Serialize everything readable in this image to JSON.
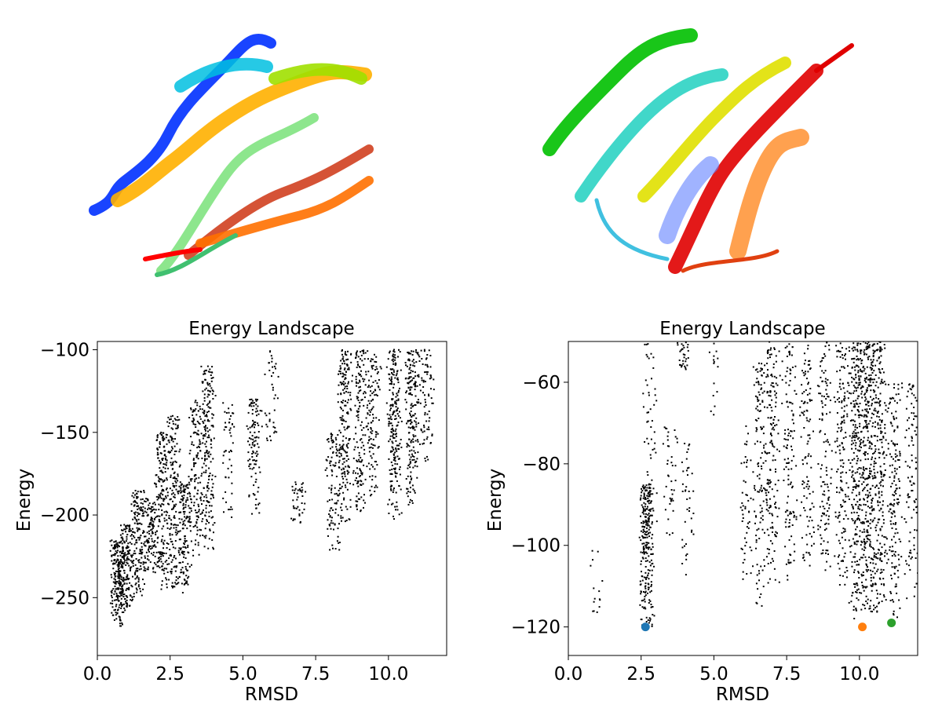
{
  "proteins": [
    {
      "rendering": "ribbon",
      "coloring": "rainbow"
    },
    {
      "rendering": "ribbon",
      "coloring": "rainbow"
    }
  ],
  "chart_data": [
    {
      "type": "scatter",
      "title": "Energy Landscape",
      "xlabel": "RMSD",
      "ylabel": "Energy",
      "xlim": [
        0,
        12
      ],
      "ylim": [
        -285,
        -95
      ],
      "xticks": [
        "0.0",
        "2.5",
        "5.0",
        "7.5",
        "10.0"
      ],
      "xtick_values": [
        0,
        2.5,
        5,
        7.5,
        10
      ],
      "yticks": [
        "−250",
        "−200",
        "−150",
        "−100"
      ],
      "ytick_values": [
        -250,
        -200,
        -150,
        -100
      ],
      "grid": false,
      "point_color": "#000000",
      "clusters": [
        {
          "x": 0.7,
          "y_low": -268,
          "y_high": -215,
          "n": 220
        },
        {
          "x": 1.0,
          "y_low": -258,
          "y_high": -205,
          "n": 160
        },
        {
          "x": 1.4,
          "y_low": -250,
          "y_high": -185,
          "n": 150
        },
        {
          "x": 1.8,
          "y_low": -235,
          "y_high": -190,
          "n": 120
        },
        {
          "x": 2.2,
          "y_low": -245,
          "y_high": -150,
          "n": 200
        },
        {
          "x": 2.6,
          "y_low": -245,
          "y_high": -140,
          "n": 180
        },
        {
          "x": 3.0,
          "y_low": -248,
          "y_high": -180,
          "n": 150
        },
        {
          "x": 3.4,
          "y_low": -225,
          "y_high": -130,
          "n": 140
        },
        {
          "x": 3.8,
          "y_low": -222,
          "y_high": -110,
          "n": 200
        },
        {
          "x": 4.5,
          "y_low": -205,
          "y_high": -130,
          "n": 50
        },
        {
          "x": 5.4,
          "y_low": -200,
          "y_high": -130,
          "n": 110
        },
        {
          "x": 6.9,
          "y_low": -205,
          "y_high": -180,
          "n": 40
        },
        {
          "x": 8.1,
          "y_low": -222,
          "y_high": -150,
          "n": 100
        },
        {
          "x": 8.5,
          "y_low": -205,
          "y_high": -100,
          "n": 200
        },
        {
          "x": 9.0,
          "y_low": -200,
          "y_high": -100,
          "n": 150
        },
        {
          "x": 9.5,
          "y_low": -190,
          "y_high": -100,
          "n": 120
        },
        {
          "x": 10.2,
          "y_low": -205,
          "y_high": -100,
          "n": 220
        },
        {
          "x": 10.8,
          "y_low": -195,
          "y_high": -100,
          "n": 200
        },
        {
          "x": 11.3,
          "y_low": -170,
          "y_high": -100,
          "n": 80
        },
        {
          "x": 6.0,
          "y_low": -160,
          "y_high": -100,
          "n": 40
        }
      ],
      "highlights": []
    },
    {
      "type": "scatter",
      "title": "Energy Landscape",
      "xlabel": "RMSD",
      "ylabel": "Energy",
      "xlim": [
        0,
        12
      ],
      "ylim": [
        -127,
        -50
      ],
      "xticks": [
        "0.0",
        "2.5",
        "5.0",
        "7.5",
        "10.0"
      ],
      "xtick_values": [
        0,
        2.5,
        5,
        7.5,
        10
      ],
      "yticks": [
        "−120",
        "−100",
        "−80",
        "−60"
      ],
      "ytick_values": [
        -120,
        -100,
        -80,
        -60
      ],
      "grid": false,
      "point_color": "#000000",
      "clusters": [
        {
          "x": 0.95,
          "y_low": -117,
          "y_high": -100,
          "n": 15
        },
        {
          "x": 2.7,
          "y_low": -120,
          "y_high": -85,
          "n": 250
        },
        {
          "x": 2.8,
          "y_low": -110,
          "y_high": -50,
          "n": 60
        },
        {
          "x": 3.5,
          "y_low": -100,
          "y_high": -70,
          "n": 40
        },
        {
          "x": 3.95,
          "y_low": -57,
          "y_high": -50,
          "n": 30
        },
        {
          "x": 4.1,
          "y_low": -110,
          "y_high": -75,
          "n": 40
        },
        {
          "x": 5.0,
          "y_low": -73,
          "y_high": -50,
          "n": 15
        },
        {
          "x": 6.1,
          "y_low": -110,
          "y_high": -70,
          "n": 50
        },
        {
          "x": 6.6,
          "y_low": -115,
          "y_high": -55,
          "n": 130
        },
        {
          "x": 7.0,
          "y_low": -110,
          "y_high": -50,
          "n": 160
        },
        {
          "x": 7.6,
          "y_low": -110,
          "y_high": -50,
          "n": 120
        },
        {
          "x": 8.2,
          "y_low": -105,
          "y_high": -50,
          "n": 110
        },
        {
          "x": 8.8,
          "y_low": -108,
          "y_high": -50,
          "n": 120
        },
        {
          "x": 9.4,
          "y_low": -110,
          "y_high": -50,
          "n": 160
        },
        {
          "x": 9.9,
          "y_low": -118,
          "y_high": -50,
          "n": 300
        },
        {
          "x": 10.3,
          "y_low": -119,
          "y_high": -50,
          "n": 320
        },
        {
          "x": 10.7,
          "y_low": -119,
          "y_high": -50,
          "n": 240
        },
        {
          "x": 11.2,
          "y_low": -118,
          "y_high": -60,
          "n": 160
        },
        {
          "x": 11.8,
          "y_low": -113,
          "y_high": -60,
          "n": 100
        }
      ],
      "highlights": [
        {
          "x": 2.65,
          "y": -120.0,
          "color": "#1f77b4"
        },
        {
          "x": 10.1,
          "y": -120.0,
          "color": "#ff7f0e"
        },
        {
          "x": 11.1,
          "y": -119.0,
          "color": "#2ca02c"
        }
      ]
    }
  ]
}
